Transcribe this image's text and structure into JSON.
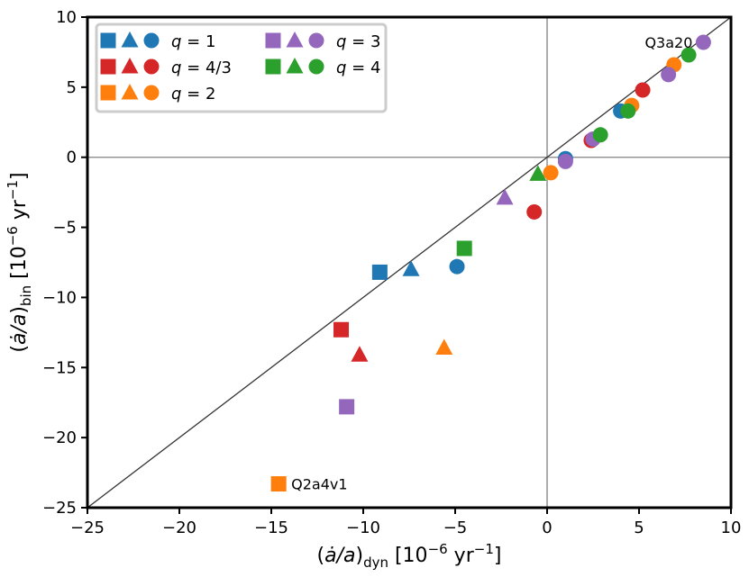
{
  "chart_data": {
    "type": "scatter",
    "xlabel_parts": {
      "open": "(",
      "main": "ȧ/a",
      "close": ")",
      "sub": "dyn",
      "unit_pre": " [10",
      "exp": "−6",
      "unit_mid": " yr",
      "unit_exp": "−1",
      "unit_post": "]"
    },
    "ylabel_parts": {
      "open": "(",
      "main": "ȧ/a",
      "close": ")",
      "sub": "bin",
      "unit_pre": " [10",
      "exp": "−6",
      "unit_mid": " yr",
      "unit_exp": "−1",
      "unit_post": "]"
    },
    "xlim": [
      -25,
      10
    ],
    "ylim": [
      -25,
      10
    ],
    "xticks": [
      -25,
      -20,
      -15,
      -10,
      -5,
      0,
      5,
      10
    ],
    "yticks": [
      -25,
      -20,
      -15,
      -10,
      -5,
      0,
      5,
      10
    ],
    "xtick_labels": [
      "−25",
      "−20",
      "−15",
      "−10",
      "−5",
      "0",
      "5",
      "10"
    ],
    "ytick_labels": [
      "−25",
      "−20",
      "−15",
      "−10",
      "−5",
      "0",
      "5",
      "10"
    ],
    "reference_lines": {
      "identity": true,
      "x0": true,
      "y0": true
    },
    "legend": {
      "location": "top-left",
      "entries": [
        {
          "label": "q = 1",
          "color": "#1f77b4"
        },
        {
          "label": "q = 4/3",
          "color": "#d62728"
        },
        {
          "label": "q = 2",
          "color": "#ff7f0e"
        },
        {
          "label": "q = 3",
          "color": "#9467bd"
        },
        {
          "label": "q = 4",
          "color": "#2ca02c"
        }
      ]
    },
    "series": [
      {
        "name": "q = 1",
        "color": "#1f77b4",
        "points": [
          {
            "x": -9.1,
            "y": -8.2,
            "marker": "square"
          },
          {
            "x": -7.4,
            "y": -8.0,
            "marker": "triangle"
          },
          {
            "x": -4.9,
            "y": -7.8,
            "marker": "circle"
          },
          {
            "x": 1.0,
            "y": -0.1,
            "marker": "circle"
          },
          {
            "x": 4.0,
            "y": 3.3,
            "marker": "circle"
          }
        ]
      },
      {
        "name": "q = 4/3",
        "color": "#d62728",
        "points": [
          {
            "x": -11.2,
            "y": -12.3,
            "marker": "square"
          },
          {
            "x": -10.2,
            "y": -14.1,
            "marker": "triangle"
          },
          {
            "x": -0.7,
            "y": -3.9,
            "marker": "circle"
          },
          {
            "x": 2.4,
            "y": 1.2,
            "marker": "circle"
          },
          {
            "x": 5.2,
            "y": 4.8,
            "marker": "circle"
          }
        ]
      },
      {
        "name": "q = 2",
        "color": "#ff7f0e",
        "points": [
          {
            "x": -14.6,
            "y": -23.3,
            "marker": "square"
          },
          {
            "x": -5.6,
            "y": -13.6,
            "marker": "triangle"
          },
          {
            "x": 0.2,
            "y": -1.1,
            "marker": "circle"
          },
          {
            "x": 4.6,
            "y": 3.7,
            "marker": "circle"
          },
          {
            "x": 6.9,
            "y": 6.6,
            "marker": "circle"
          }
        ]
      },
      {
        "name": "q = 3",
        "color": "#9467bd",
        "points": [
          {
            "x": -10.9,
            "y": -17.8,
            "marker": "square"
          },
          {
            "x": -2.3,
            "y": -2.9,
            "marker": "triangle"
          },
          {
            "x": 1.0,
            "y": -0.3,
            "marker": "circle"
          },
          {
            "x": 2.5,
            "y": 1.3,
            "marker": "circle"
          },
          {
            "x": 6.6,
            "y": 5.9,
            "marker": "circle"
          },
          {
            "x": 8.5,
            "y": 8.2,
            "marker": "circle"
          }
        ]
      },
      {
        "name": "q = 4",
        "color": "#2ca02c",
        "points": [
          {
            "x": -4.5,
            "y": -6.5,
            "marker": "square"
          },
          {
            "x": -0.5,
            "y": -1.2,
            "marker": "triangle"
          },
          {
            "x": 2.9,
            "y": 1.6,
            "marker": "circle"
          },
          {
            "x": 4.4,
            "y": 3.3,
            "marker": "circle"
          },
          {
            "x": 7.7,
            "y": 7.3,
            "marker": "circle"
          }
        ]
      }
    ],
    "annotations": [
      {
        "text": "Q3a20",
        "x": 8.5,
        "y": 8.2,
        "anchor": "left-of-point"
      },
      {
        "text": "Q2a4v1",
        "x": -14.6,
        "y": -23.3,
        "anchor": "right-of-point"
      }
    ]
  }
}
